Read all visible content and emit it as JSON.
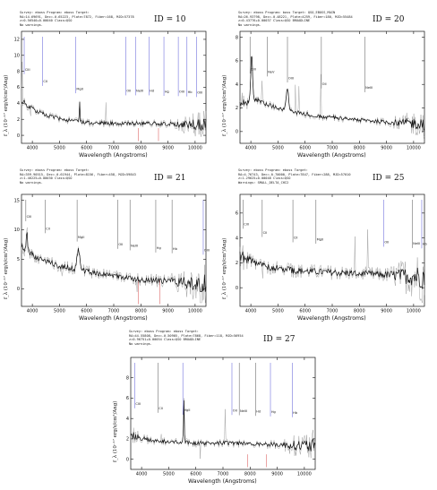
{
  "chart_data": [
    {
      "type": "line",
      "id_label": "ID = 10",
      "header": [
        "Survey: eboss Program: eboss Target:",
        "RA=14.69691, Dec=-0.65223, Plate=7872, Fiber=168, MJD=57378",
        "z=0.56540+0.00040 Class=QSO",
        "No warnings."
      ],
      "xlabel": "Wavelength (Angstroms)",
      "ylabel": "f_λ (10⁻¹⁷ erg/s/cm²/Ang)",
      "xlim": [
        3600,
        10400
      ],
      "ylim": [
        -1,
        13
      ],
      "x_ticks": [
        4000,
        5000,
        6000,
        7000,
        8000,
        9000,
        10000
      ],
      "y_ticks": [
        0,
        2,
        4,
        6,
        8,
        10,
        12
      ],
      "continuum": [
        [
          3600,
          4.5
        ],
        [
          3800,
          3.8
        ],
        [
          4100,
          3.1
        ],
        [
          4500,
          2.5
        ],
        [
          5000,
          2.1
        ],
        [
          5500,
          1.8
        ],
        [
          6000,
          1.6
        ],
        [
          6500,
          1.5
        ],
        [
          7000,
          1.5
        ],
        [
          7500,
          1.5
        ],
        [
          8000,
          1.5
        ],
        [
          8500,
          1.5
        ],
        [
          9000,
          1.4
        ],
        [
          9500,
          1.4
        ],
        [
          10000,
          1.3
        ],
        [
          10400,
          1.2
        ]
      ],
      "noise": 0.5,
      "peaks": [
        [
          5740,
          2.5,
          20
        ]
      ],
      "line_markers": [
        {
          "x": 3700,
          "label": "CIII",
          "color": "#3a3ad0"
        },
        {
          "x": 4380,
          "label": "CII",
          "color": "#3a3ad0"
        },
        {
          "x": 5600,
          "label": "MgII",
          "color": "#3a3ad0"
        },
        {
          "x": 7450,
          "label": "OII",
          "color": "#3a3ad0"
        },
        {
          "x": 7800,
          "label": "NeIII",
          "color": "#3a3ad0"
        },
        {
          "x": 8300,
          "label": "Hd",
          "color": "#3a3ad0"
        },
        {
          "x": 8850,
          "label": "Hg",
          "color": "#3a3ad0"
        },
        {
          "x": 9380,
          "label": "OIII",
          "color": "#3a3ad0"
        },
        {
          "x": 9700,
          "label": "Hb",
          "color": "#3a3ad0"
        },
        {
          "x": 10050,
          "label": "OIII",
          "color": "#3a3ad0"
        },
        {
          "x": 7900,
          "label": "",
          "color": "#d02a2a"
        },
        {
          "x": 8650,
          "label": "",
          "color": "#d02a2a"
        }
      ]
    },
    {
      "type": "line",
      "id_label": "ID = 20",
      "header": [
        "Survey: eboss Program: boss Target: QSO_EBOSS_MAIN",
        "RA=26.93798, Dec=-0.48221, Plate=4259, Fiber=180, MJD=55484",
        "z=0.43776+0.00037 Class=QSO BROADLINE",
        "No warnings."
      ],
      "xlabel": "Wavelength (Angstroms)",
      "ylabel": "f_λ (10⁻¹⁷ erg/s/cm²/Ang)",
      "xlim": [
        3600,
        10400
      ],
      "ylim": [
        -1,
        8.5
      ],
      "x_ticks": [
        4000,
        5000,
        6000,
        7000,
        8000,
        9000,
        10000
      ],
      "y_ticks": [
        0,
        2,
        4,
        6,
        8
      ],
      "continuum": [
        [
          3600,
          2.4
        ],
        [
          3900,
          2.5
        ],
        [
          4200,
          2.7
        ],
        [
          4600,
          2.3
        ],
        [
          5000,
          2.0
        ],
        [
          5500,
          1.7
        ],
        [
          6000,
          1.5
        ],
        [
          6500,
          1.3
        ],
        [
          7000,
          1.2
        ],
        [
          7500,
          1.1
        ],
        [
          8000,
          1.0
        ],
        [
          8500,
          0.9
        ],
        [
          9000,
          0.8
        ],
        [
          9500,
          0.75
        ],
        [
          10000,
          0.7
        ],
        [
          10400,
          0.7
        ]
      ],
      "noise": 0.35,
      "peaks": [
        [
          4030,
          4.0,
          45
        ],
        [
          5350,
          1.8,
          60
        ]
      ],
      "line_markers": [
        {
          "x": 3970,
          "label": "CIII",
          "color": "#333333"
        },
        {
          "x": 5350,
          "label": "OIII",
          "color": "#333333"
        },
        {
          "x": 4600,
          "label": "NeV",
          "color": "#333333"
        },
        {
          "x": 6600,
          "label": "OII",
          "color": "#333333"
        },
        {
          "x": 8200,
          "label": "NeIII",
          "color": "#333333"
        }
      ]
    },
    {
      "type": "line",
      "id_label": "ID = 21",
      "header": [
        "Survey: eboss Program: eboss Target:",
        "RA=359.90515, Dec=-0.61944, Plate=8156, Fiber=458, MJD=59843",
        "z=1.46225+0.00030 Class=QSO",
        "No warnings."
      ],
      "xlabel": "Wavelength (Angstroms)",
      "ylabel": "f_λ (10⁻¹⁷ erg/s/cm²/Ang)",
      "xlim": [
        3600,
        10400
      ],
      "ylim": [
        -3,
        16
      ],
      "x_ticks": [
        4000,
        5000,
        6000,
        7000,
        8000,
        9000,
        10000
      ],
      "y_ticks": [
        0,
        5,
        10,
        15
      ],
      "continuum": [
        [
          3600,
          7.5
        ],
        [
          3800,
          6.5
        ],
        [
          4100,
          5.5
        ],
        [
          4500,
          4.6
        ],
        [
          5000,
          3.9
        ],
        [
          5500,
          3.4
        ],
        [
          6000,
          2.9
        ],
        [
          6500,
          2.5
        ],
        [
          7000,
          2.1
        ],
        [
          7500,
          1.8
        ],
        [
          8000,
          1.6
        ],
        [
          8500,
          1.4
        ],
        [
          9000,
          1.3
        ],
        [
          9500,
          1.2
        ],
        [
          10000,
          1.1
        ],
        [
          10400,
          1.0
        ]
      ],
      "noise": 1.1,
      "peaks": [
        [
          5700,
          3.5,
          70
        ],
        [
          3800,
          2.5,
          50
        ]
      ],
      "line_markers": [
        {
          "x": 3760,
          "label": "CIII",
          "color": "#333333"
        },
        {
          "x": 4470,
          "label": "CII",
          "color": "#333333"
        },
        {
          "x": 5650,
          "label": "MgII",
          "color": "#333333"
        },
        {
          "x": 7150,
          "label": "OII",
          "color": "#333333"
        },
        {
          "x": 7600,
          "label": "NeIII",
          "color": "#333333"
        },
        {
          "x": 8550,
          "label": "Hg",
          "color": "#333333"
        },
        {
          "x": 9150,
          "label": "Hb",
          "color": "#333333"
        },
        {
          "x": 10300,
          "label": "OIII",
          "color": "#3a3ad0"
        },
        {
          "x": 7900,
          "label": "",
          "color": "#d02a2a"
        },
        {
          "x": 8700,
          "label": "",
          "color": "#d02a2a"
        }
      ]
    },
    {
      "type": "line",
      "id_label": "ID = 25",
      "header": [
        "Survey: eboss Program: eboss Target:",
        "RA=4.76743, Dec=-0.70000, Plate=7847, Fiber=288, MJD=57010",
        "z=1.29625+0.00048 Class=QSO",
        "Warnings: SMALL_DELTA_CHI2"
      ],
      "xlabel": "Wavelength (Angstroms)",
      "ylabel": "f_λ (10⁻¹⁷ erg/s/cm²/Ang)",
      "xlim": [
        3600,
        10400
      ],
      "ylim": [
        -1.5,
        7.5
      ],
      "x_ticks": [
        4000,
        5000,
        6000,
        7000,
        8000,
        9000,
        10000
      ],
      "y_ticks": [
        0,
        2,
        4,
        6
      ],
      "continuum": [
        [
          3600,
          2.6
        ],
        [
          3900,
          2.3
        ],
        [
          4300,
          1.9
        ],
        [
          4800,
          1.6
        ],
        [
          5300,
          1.45
        ],
        [
          5800,
          1.35
        ],
        [
          6300,
          1.3
        ],
        [
          6800,
          1.25
        ],
        [
          7300,
          1.2
        ],
        [
          7800,
          1.15
        ],
        [
          8300,
          1.1
        ],
        [
          8800,
          1.05
        ],
        [
          9300,
          1.0
        ],
        [
          9800,
          0.95
        ],
        [
          10400,
          0.9
        ]
      ],
      "noise": 0.6,
      "peaks": [],
      "line_markers": [
        {
          "x": 3710,
          "label": "CIII",
          "color": "#333333"
        },
        {
          "x": 4420,
          "label": "CII",
          "color": "#333333"
        },
        {
          "x": 5550,
          "label": "CII",
          "color": "#333333"
        },
        {
          "x": 6400,
          "label": "MgII",
          "color": "#333333"
        },
        {
          "x": 8900,
          "label": "OII",
          "color": "#3a3ad0"
        },
        {
          "x": 9950,
          "label": "NeIII",
          "color": "#333333"
        },
        {
          "x": 10300,
          "label": "Hb",
          "color": "#3a3ad0"
        }
      ]
    },
    {
      "type": "line",
      "id_label": "ID = 27",
      "header": [
        "Survey: eboss Program: eboss Target:",
        "RA=44.55808, Dec=-0.50905, Plate=7868, Fiber=118, MJD=56954",
        "z=0.96751+0.00054 Class=QSO BROADLINE",
        "No warnings."
      ],
      "xlabel": "Wavelength (Angstroms)",
      "ylabel": "f_λ (10⁻¹⁷ erg/s/cm²/Ang)",
      "xlim": [
        3600,
        10400
      ],
      "ylim": [
        -1,
        10
      ],
      "x_ticks": [
        4000,
        5000,
        6000,
        7000,
        8000,
        9000,
        10000
      ],
      "y_ticks": [
        0,
        2,
        4,
        6,
        8
      ],
      "continuum": [
        [
          3600,
          2.4
        ],
        [
          3900,
          2.1
        ],
        [
          4300,
          1.9
        ],
        [
          4800,
          1.75
        ],
        [
          5300,
          1.65
        ],
        [
          5800,
          1.6
        ],
        [
          6300,
          1.6
        ],
        [
          6800,
          1.6
        ],
        [
          7300,
          1.6
        ],
        [
          7800,
          1.55
        ],
        [
          8300,
          1.5
        ],
        [
          8800,
          1.45
        ],
        [
          9300,
          1.4
        ],
        [
          9800,
          1.35
        ],
        [
          10400,
          1.3
        ]
      ],
      "noise": 0.45,
      "peaks": [
        [
          5560,
          4.0,
          20
        ]
      ],
      "line_markers": [
        {
          "x": 3750,
          "label": "CIII",
          "color": "#3a3ad0"
        },
        {
          "x": 4600,
          "label": "CII",
          "color": "#333333"
        },
        {
          "x": 5520,
          "label": "MgII",
          "color": "#3a3ad0"
        },
        {
          "x": 7330,
          "label": "OII",
          "color": "#3a3ad0"
        },
        {
          "x": 7600,
          "label": "NeIII",
          "color": "#333333"
        },
        {
          "x": 8200,
          "label": "Hd",
          "color": "#333333"
        },
        {
          "x": 8750,
          "label": "Hg",
          "color": "#3a3ad0"
        },
        {
          "x": 9550,
          "label": "Hb",
          "color": "#3a3ad0"
        },
        {
          "x": 7900,
          "label": "",
          "color": "#d02a2a"
        },
        {
          "x": 8600,
          "label": "",
          "color": "#d02a2a"
        }
      ]
    }
  ]
}
